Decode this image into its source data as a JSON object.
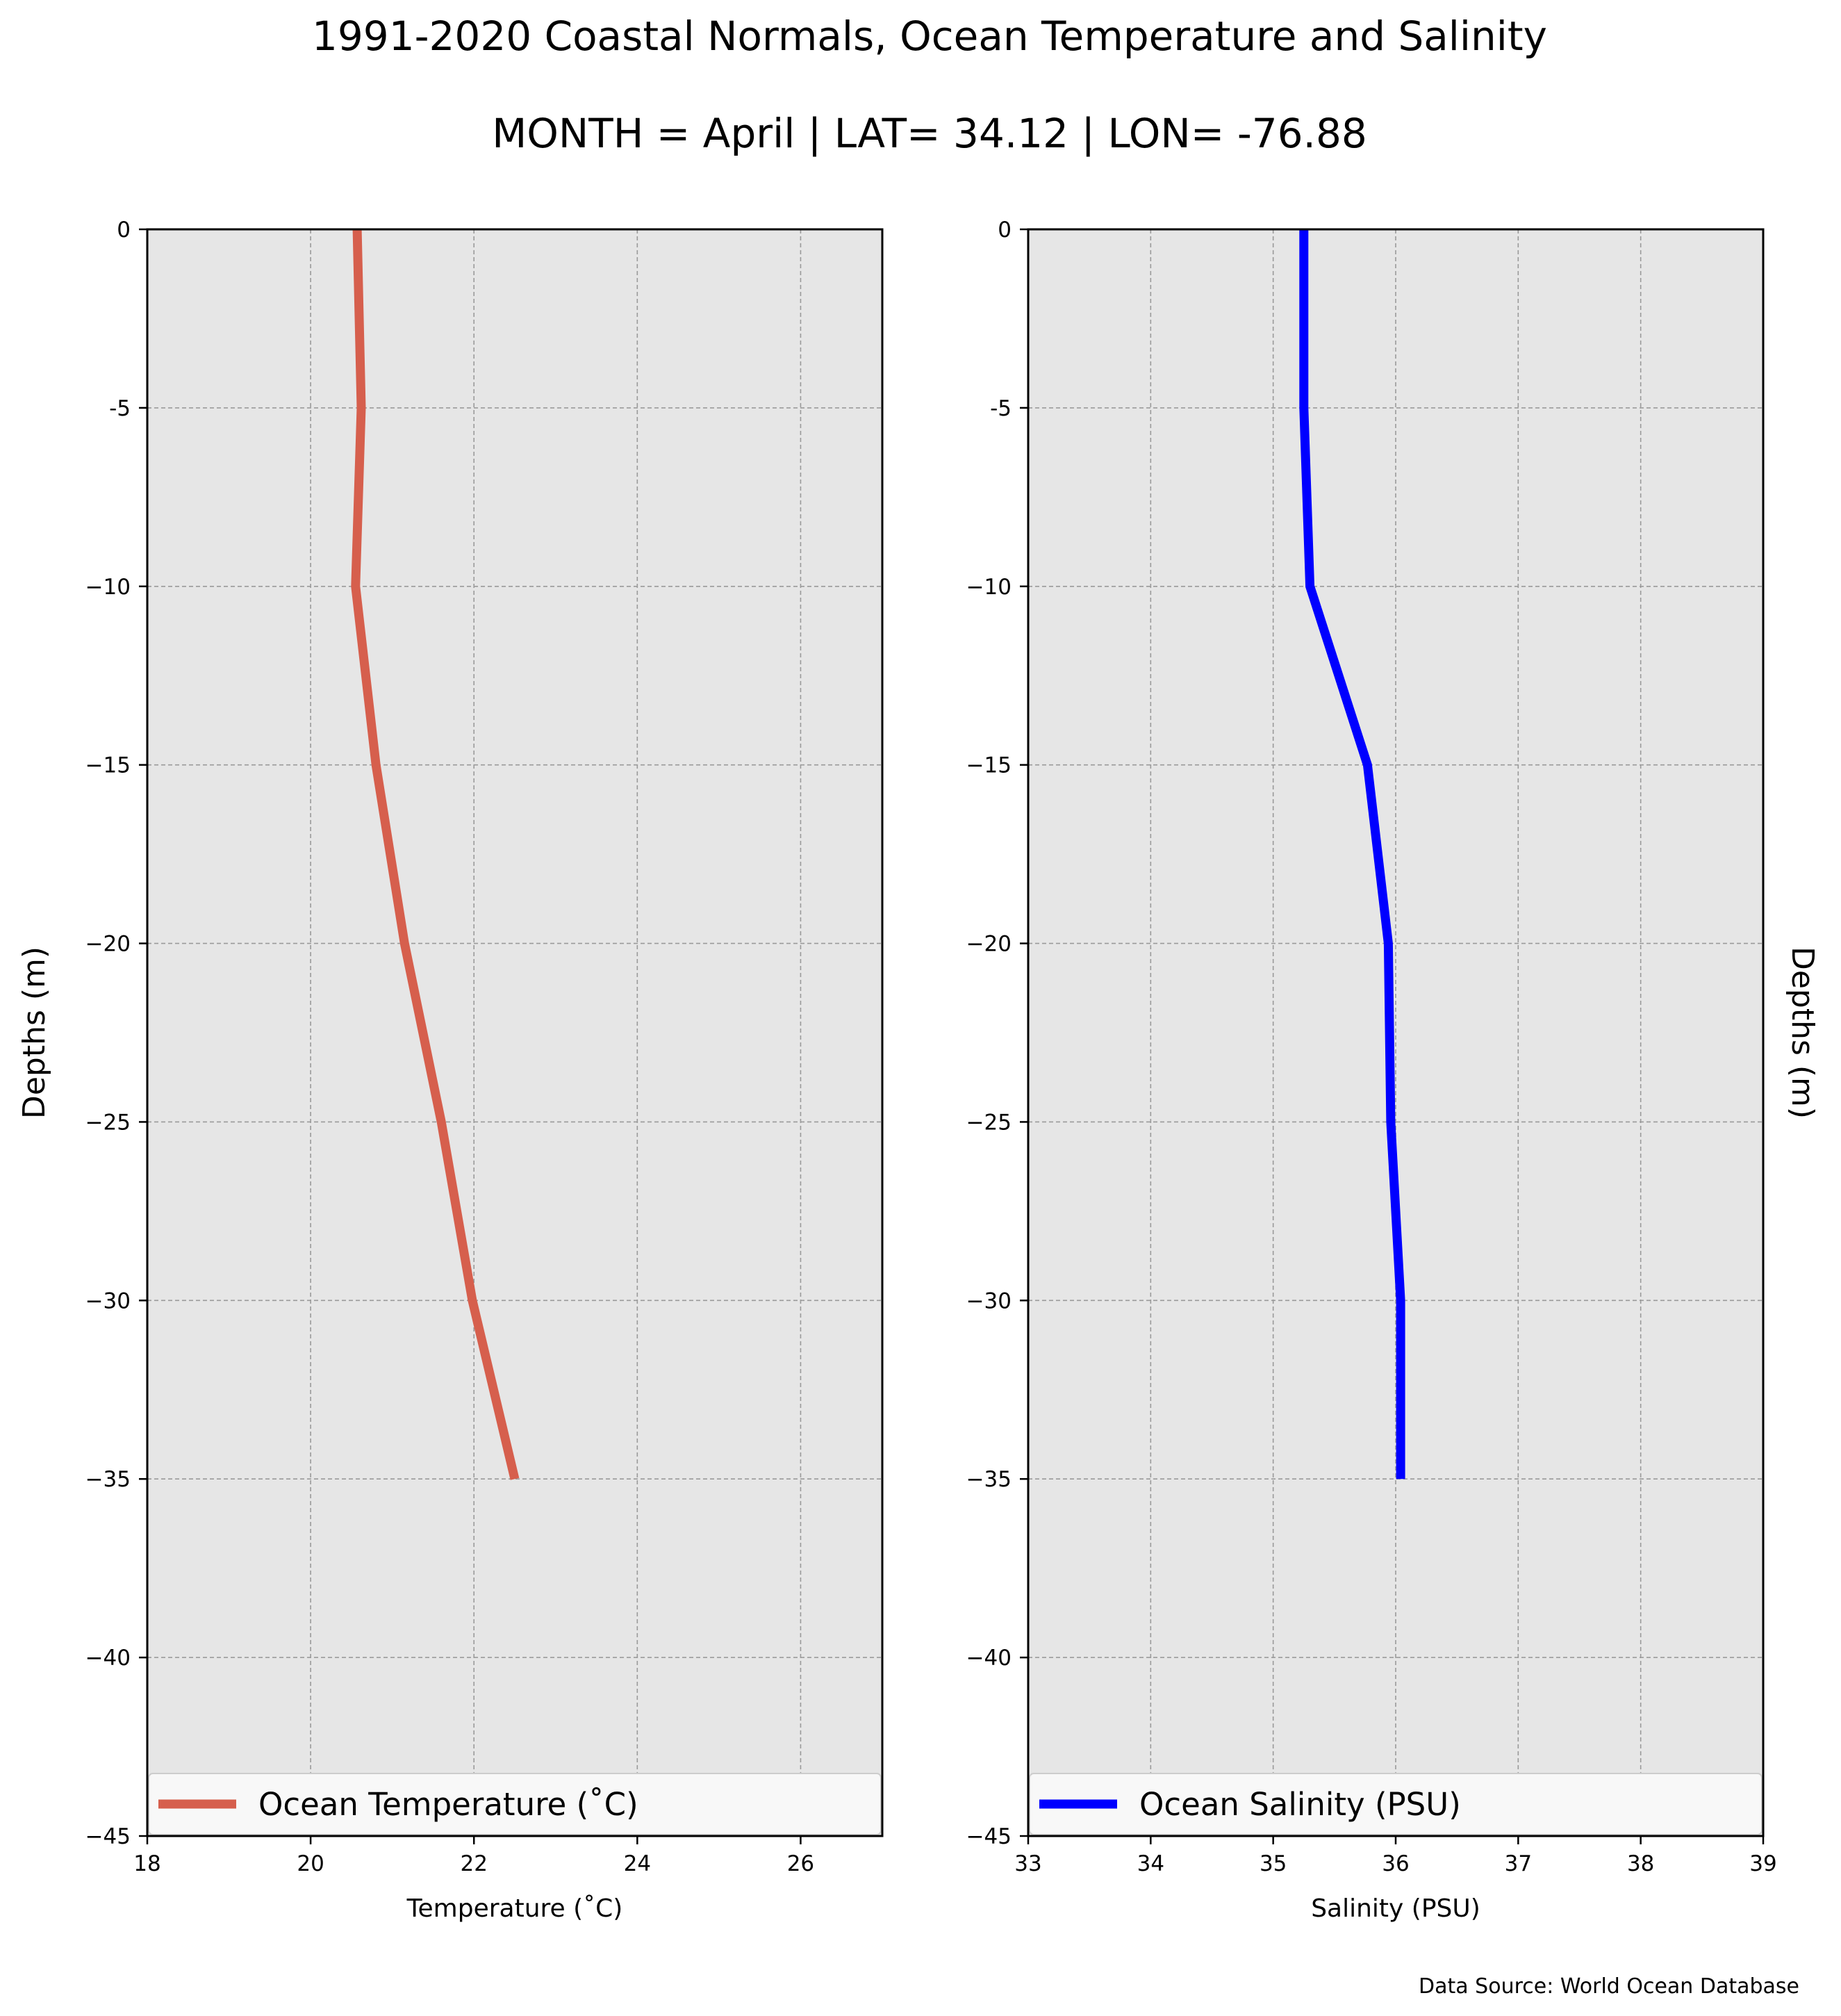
{
  "figure": {
    "title": "1991-2020 Coastal Normals, Ocean Temperature and Salinity",
    "subtitle": "MONTH = April | LAT= 34.12 | LON= -76.88",
    "source": "Data Source: World Ocean Database"
  },
  "chart_data": [
    {
      "type": "line",
      "title": "",
      "xlabel": "Temperature ($^\\circ$C)",
      "xlabel_display": "Temperature (˚C)",
      "ylabel": "Depths (m)",
      "xlim": [
        18,
        27
      ],
      "ylim": [
        -45,
        0
      ],
      "xticks": [
        18,
        20,
        22,
        24,
        26
      ],
      "yticks": [
        0,
        -5,
        -10,
        -15,
        -20,
        -25,
        -30,
        -35,
        -40,
        -45
      ],
      "ytick_labels": [
        "0",
        "-5",
        "−10",
        "−15",
        "−20",
        "−25",
        "−30",
        "−35",
        "−40",
        "−45"
      ],
      "grid": true,
      "legend_placement": "lower center",
      "series": [
        {
          "name": "Ocean Temperature (˚C)",
          "color": "#d65f4d",
          "x": [
            20.57,
            20.62,
            20.55,
            20.8,
            21.15,
            21.6,
            21.98,
            22.5
          ],
          "y": [
            0,
            -5,
            -10,
            -15,
            -20,
            -25,
            -30,
            -35
          ]
        }
      ]
    },
    {
      "type": "line",
      "title": "",
      "xlabel": "Salinity (PSU)",
      "xlabel_display": "Salinity (PSU)",
      "ylabel": "Depths (m)",
      "xlim": [
        33,
        39
      ],
      "ylim": [
        -45,
        0
      ],
      "xticks": [
        33,
        34,
        35,
        36,
        37,
        38,
        39
      ],
      "yticks": [
        0,
        -5,
        -10,
        -15,
        -20,
        -25,
        -30,
        -35,
        -40,
        -45
      ],
      "ytick_labels": [
        "0",
        "-5",
        "−10",
        "−15",
        "−20",
        "−25",
        "−30",
        "−35",
        "−40",
        "−45"
      ],
      "grid": true,
      "legend_placement": "lower center",
      "series": [
        {
          "name": "Ocean Salinity (PSU)",
          "color": "#0000ff",
          "x": [
            35.25,
            35.25,
            35.3,
            35.77,
            35.94,
            35.96,
            36.04,
            36.04
          ],
          "y": [
            0,
            -5,
            -10,
            -15,
            -20,
            -25,
            -30,
            -35
          ]
        }
      ]
    }
  ],
  "colors": {
    "axes_background": "#e6e6e6",
    "grid": "#9a9a9a",
    "legend_background": "#f8f8f8"
  }
}
